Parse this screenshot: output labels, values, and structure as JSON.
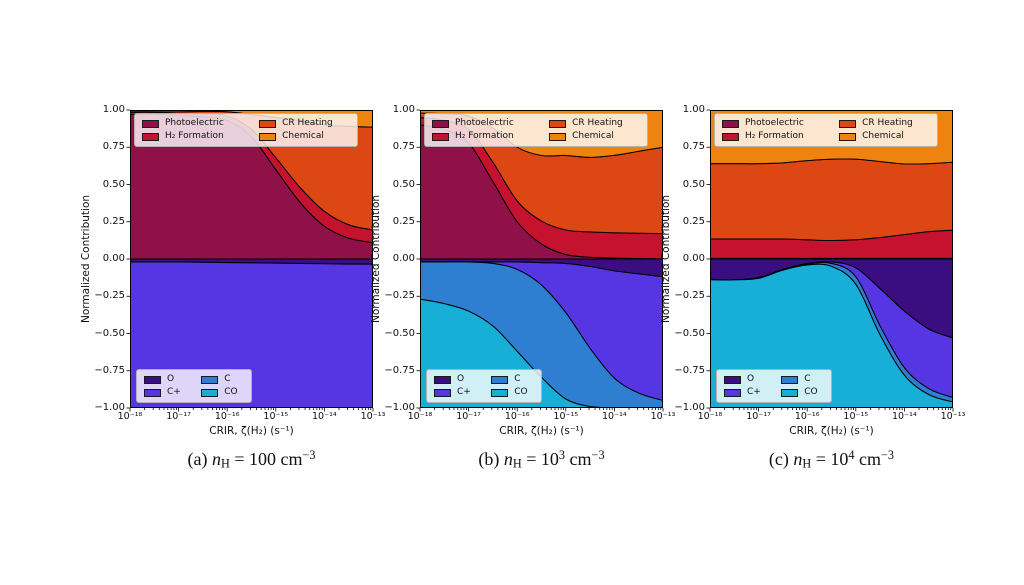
{
  "figure": {
    "background_color": "#ffffff",
    "axis_color": "#000000",
    "x_axis": {
      "label": "CRIR, ζ(H₂) (s⁻¹)",
      "scale": "log",
      "tick_exponents": [
        -18,
        -17,
        -16,
        -15,
        -14,
        -13
      ],
      "tick_labels": [
        "10⁻¹⁸",
        "10⁻¹⁷",
        "10⁻¹⁶",
        "10⁻¹⁵",
        "10⁻¹⁴",
        "10⁻¹³"
      ]
    },
    "y_axis": {
      "label": "Normalized Contribution",
      "tick_values": [
        1.0,
        0.75,
        0.5,
        0.25,
        0.0,
        -0.25,
        -0.5,
        -0.75,
        -1.0
      ],
      "tick_labels": [
        "1.00",
        "0.75",
        "0.50",
        "0.25",
        "0.00",
        "−0.25",
        "−0.50",
        "−0.75",
        "−1.00"
      ]
    },
    "legend_heating": {
      "position": "upper-inside",
      "items": [
        {
          "label": "Photoelectric",
          "color": "#8F1148"
        },
        {
          "label": "H₂ Formation",
          "color": "#C5122E"
        },
        {
          "label": "CR Heating",
          "color": "#DC4714"
        },
        {
          "label": "Chemical",
          "color": "#EF830F"
        }
      ]
    },
    "legend_cooling": {
      "position": "lower-inside",
      "items": [
        {
          "label": "O",
          "color": "#3A0D80"
        },
        {
          "label": "C+",
          "color": "#5536E2"
        },
        {
          "label": "C",
          "color": "#2E7ED2"
        },
        {
          "label": "CO",
          "color": "#17AFD8"
        }
      ]
    }
  },
  "chart_data": [
    {
      "type": "area",
      "panel": "a",
      "caption_segments": [
        {
          "text": "(a) ",
          "style": "r"
        },
        {
          "text": "n",
          "style": "i"
        },
        {
          "text": "H",
          "style": "sub"
        },
        {
          "text": " = 100 cm",
          "style": "r"
        },
        {
          "text": "−3",
          "style": "sup"
        }
      ],
      "xlabel": "CRIR, ζ(H₂) (s⁻¹)",
      "ylabel": "Normalized Contribution",
      "xlim_log10": [
        -18,
        -13
      ],
      "ylim": [
        -1,
        1
      ],
      "x_log10_zeta": [
        -18,
        -17.5,
        -17,
        -16.5,
        -16,
        -15.5,
        -15,
        -14.5,
        -14,
        -13.5,
        -13
      ],
      "series_heating": [
        {
          "name": "Photoelectric",
          "color": "#8F1148",
          "values": [
            0.97,
            0.97,
            0.965,
            0.955,
            0.93,
            0.82,
            0.6,
            0.38,
            0.22,
            0.14,
            0.11
          ]
        },
        {
          "name": "H₂ Formation",
          "color": "#C5122E",
          "values": [
            0.015,
            0.015,
            0.015,
            0.02,
            0.03,
            0.05,
            0.08,
            0.1,
            0.1,
            0.09,
            0.085
          ]
        },
        {
          "name": "CR Heating",
          "color": "#DC4714",
          "values": [
            0.01,
            0.01,
            0.013,
            0.017,
            0.028,
            0.1,
            0.27,
            0.45,
            0.58,
            0.66,
            0.69
          ]
        },
        {
          "name": "Chemical",
          "color": "#EF830F",
          "values": [
            0.005,
            0.005,
            0.007,
            0.008,
            0.012,
            0.03,
            0.05,
            0.07,
            0.1,
            0.11,
            0.115
          ]
        }
      ],
      "series_cooling_note": "values are magnitudes of normalized cooling contributions, plotted downward from 0 to -1",
      "series_cooling": [
        {
          "name": "O",
          "color": "#3A0D80",
          "values": [
            0.02,
            0.02,
            0.02,
            0.022,
            0.024,
            0.026,
            0.028,
            0.03,
            0.032,
            0.034,
            0.035
          ]
        },
        {
          "name": "C+",
          "color": "#5536E2",
          "values": [
            0.98,
            0.98,
            0.98,
            0.978,
            0.976,
            0.974,
            0.972,
            0.97,
            0.968,
            0.966,
            0.965
          ]
        },
        {
          "name": "C",
          "color": "#2E7ED2",
          "values": [
            0,
            0,
            0,
            0,
            0,
            0,
            0,
            0,
            0,
            0,
            0
          ]
        },
        {
          "name": "CO",
          "color": "#17AFD8",
          "values": [
            0,
            0,
            0,
            0,
            0,
            0,
            0,
            0,
            0,
            0,
            0
          ]
        }
      ]
    },
    {
      "type": "area",
      "panel": "b",
      "caption_segments": [
        {
          "text": "(b) ",
          "style": "r"
        },
        {
          "text": "n",
          "style": "i"
        },
        {
          "text": "H",
          "style": "sub"
        },
        {
          "text": " = 10",
          "style": "r"
        },
        {
          "text": "3",
          "style": "sup"
        },
        {
          "text": " cm",
          "style": "r"
        },
        {
          "text": "−3",
          "style": "sup"
        }
      ],
      "xlabel": "CRIR, ζ(H₂) (s⁻¹)",
      "ylabel": "Normalized Contribution",
      "xlim_log10": [
        -18,
        -13
      ],
      "ylim": [
        -1,
        1
      ],
      "x_log10_zeta": [
        -18,
        -17.5,
        -17,
        -16.5,
        -16,
        -15.5,
        -15,
        -14.5,
        -14,
        -13.5,
        -13
      ],
      "series_heating": [
        {
          "name": "Photoelectric",
          "color": "#8F1148",
          "values": [
            0.9,
            0.87,
            0.78,
            0.52,
            0.25,
            0.1,
            0.03,
            0.012,
            0.006,
            0.003,
            0.002
          ]
        },
        {
          "name": "H₂ Formation",
          "color": "#C5122E",
          "values": [
            0.05,
            0.06,
            0.09,
            0.13,
            0.14,
            0.155,
            0.165,
            0.17,
            0.17,
            0.17,
            0.168
          ]
        },
        {
          "name": "CR Heating",
          "color": "#DC4714",
          "values": [
            0.03,
            0.045,
            0.09,
            0.23,
            0.36,
            0.44,
            0.5,
            0.5,
            0.52,
            0.55,
            0.58
          ]
        },
        {
          "name": "Chemical",
          "color": "#EF830F",
          "values": [
            0.02,
            0.025,
            0.04,
            0.12,
            0.25,
            0.305,
            0.305,
            0.318,
            0.304,
            0.277,
            0.25
          ]
        }
      ],
      "series_cooling": [
        {
          "name": "O",
          "color": "#3A0D80",
          "values": [
            0.02,
            0.02,
            0.02,
            0.02,
            0.02,
            0.025,
            0.03,
            0.05,
            0.08,
            0.1,
            0.12
          ]
        },
        {
          "name": "C+",
          "color": "#5536E2",
          "values": [
            0.0,
            0.0,
            0.0,
            0.01,
            0.05,
            0.15,
            0.33,
            0.55,
            0.72,
            0.8,
            0.83
          ]
        },
        {
          "name": "C",
          "color": "#2E7ED2",
          "values": [
            0.25,
            0.28,
            0.33,
            0.42,
            0.55,
            0.62,
            0.58,
            0.39,
            0.2,
            0.1,
            0.05
          ]
        },
        {
          "name": "CO",
          "color": "#17AFD8",
          "values": [
            0.73,
            0.7,
            0.65,
            0.55,
            0.38,
            0.205,
            0.06,
            0.01,
            0.0,
            0.0,
            0.0
          ]
        }
      ]
    },
    {
      "type": "area",
      "panel": "c",
      "caption_segments": [
        {
          "text": "(c) ",
          "style": "r"
        },
        {
          "text": "n",
          "style": "i"
        },
        {
          "text": "H",
          "style": "sub"
        },
        {
          "text": " = 10",
          "style": "r"
        },
        {
          "text": "4",
          "style": "sup"
        },
        {
          "text": " cm",
          "style": "r"
        },
        {
          "text": "−3",
          "style": "sup"
        }
      ],
      "xlabel": "CRIR, ζ(H₂) (s⁻¹)",
      "ylabel": "Normalized Contribution",
      "xlim_log10": [
        -18,
        -13
      ],
      "ylim": [
        -1,
        1
      ],
      "x_log10_zeta": [
        -18,
        -17.5,
        -17,
        -16.5,
        -16,
        -15.5,
        -15,
        -14.5,
        -14,
        -13.5,
        -13
      ],
      "series_heating": [
        {
          "name": "Photoelectric",
          "color": "#8F1148",
          "values": [
            0.004,
            0.004,
            0.004,
            0.004,
            0.004,
            0.004,
            0.004,
            0.004,
            0.004,
            0.004,
            0.004
          ]
        },
        {
          "name": "H₂ Formation",
          "color": "#C5122E",
          "values": [
            0.13,
            0.13,
            0.13,
            0.13,
            0.125,
            0.12,
            0.125,
            0.14,
            0.16,
            0.18,
            0.19
          ]
        },
        {
          "name": "CR Heating",
          "color": "#DC4714",
          "values": [
            0.506,
            0.506,
            0.506,
            0.511,
            0.531,
            0.546,
            0.541,
            0.51,
            0.474,
            0.456,
            0.456
          ]
        },
        {
          "name": "Chemical",
          "color": "#EF830F",
          "values": [
            0.36,
            0.36,
            0.36,
            0.355,
            0.34,
            0.33,
            0.33,
            0.346,
            0.362,
            0.36,
            0.35
          ]
        }
      ],
      "series_cooling": [
        {
          "name": "O",
          "color": "#3A0D80",
          "values": [
            0.14,
            0.14,
            0.125,
            0.07,
            0.03,
            0.02,
            0.06,
            0.2,
            0.35,
            0.47,
            0.53
          ]
        },
        {
          "name": "C+",
          "color": "#5536E2",
          "values": [
            0.0,
            0.0,
            0.0,
            0.0,
            0.005,
            0.01,
            0.06,
            0.25,
            0.38,
            0.4,
            0.4
          ]
        },
        {
          "name": "C",
          "color": "#2E7ED2",
          "values": [
            0.0,
            0.0,
            0.005,
            0.005,
            0.005,
            0.02,
            0.05,
            0.06,
            0.05,
            0.04,
            0.03
          ]
        },
        {
          "name": "CO",
          "color": "#17AFD8",
          "values": [
            0.86,
            0.86,
            0.87,
            0.925,
            0.96,
            0.95,
            0.83,
            0.49,
            0.22,
            0.09,
            0.04
          ]
        }
      ]
    }
  ]
}
